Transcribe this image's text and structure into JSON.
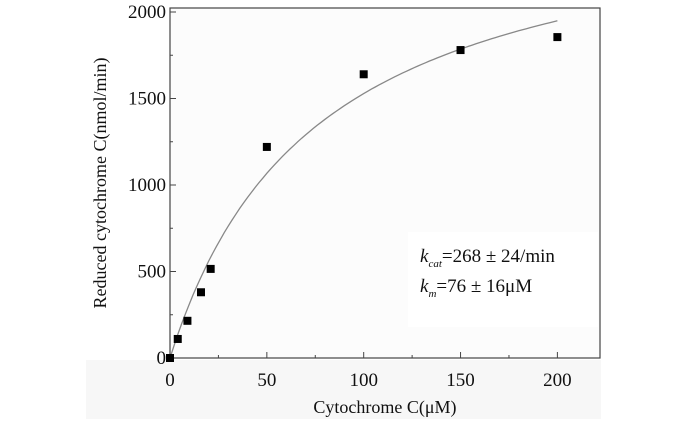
{
  "chart_data": {
    "type": "scatter",
    "title": "",
    "xlabel": "Cytochrome C(μM)",
    "ylabel": "Reduced cytochrome C(nmol/min)",
    "xlim": [
      0,
      222
    ],
    "ylim": [
      0,
      2000
    ],
    "xticks": [
      "0",
      "50",
      "100",
      "150",
      "200"
    ],
    "yticks": [
      "0",
      "500",
      "1000",
      "1500",
      "2000"
    ],
    "grid": false,
    "x": [
      0,
      4,
      9,
      16,
      21,
      50,
      100,
      150,
      200
    ],
    "y": [
      0,
      110,
      215,
      380,
      515,
      1220,
      1640,
      1780,
      1855
    ],
    "fit": {
      "type": "michaelis-menten",
      "vmax": 2690,
      "km": 76
    },
    "annotation": {
      "kcat_symbol": "k",
      "kcat_sub": "cat",
      "kcat_text": "=268 ± 24/min",
      "km_symbol": "k",
      "km_sub": "m",
      "km_text": "=76 ± 16μM"
    }
  }
}
